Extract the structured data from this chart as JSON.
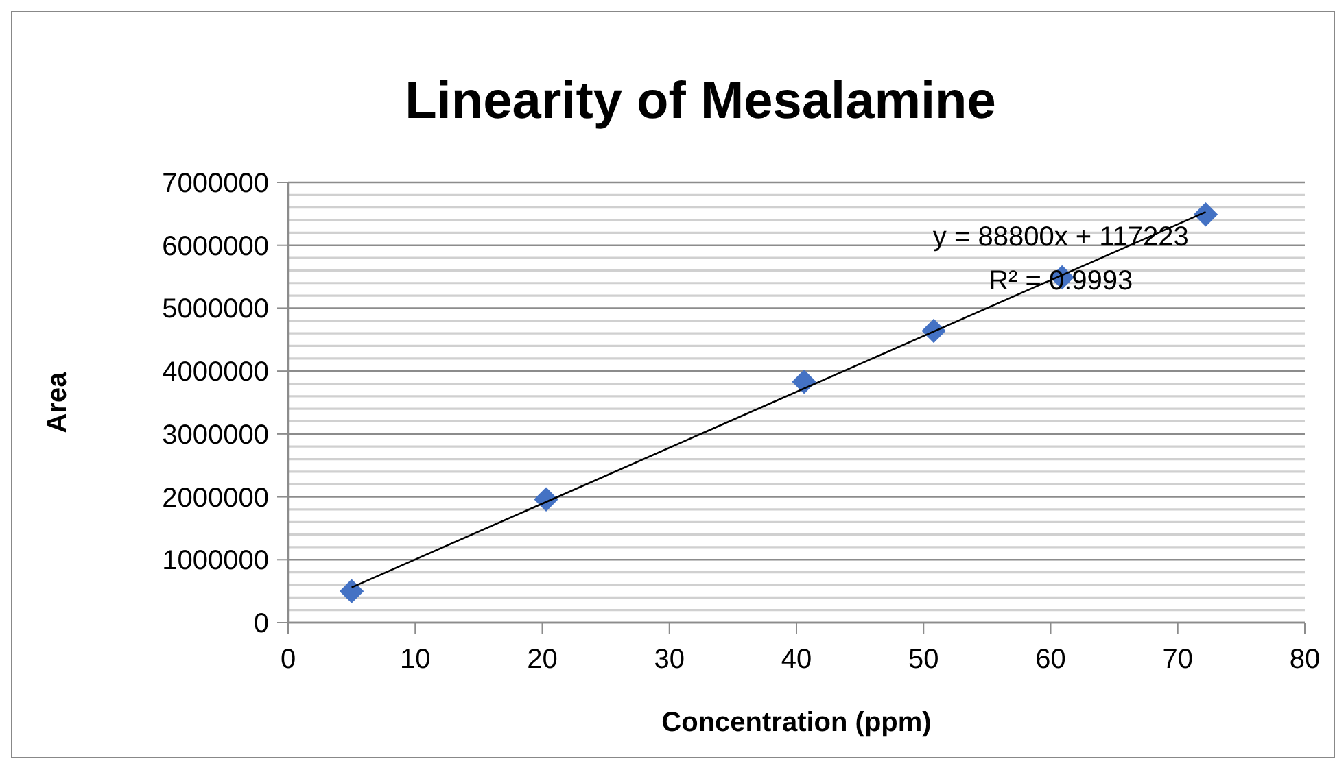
{
  "chart_data": {
    "type": "scatter",
    "title": "Linearity of Mesalamine",
    "xlabel": "Concentration (ppm)",
    "ylabel": "Area",
    "x": [
      5,
      20.3,
      40.6,
      50.8,
      60.9,
      72.2
    ],
    "series": [
      {
        "color": "#4472c4",
        "marker": "diamond",
        "values": [
          500000,
          1960000,
          3830000,
          4640000,
          5490000,
          6490000
        ]
      },
      {
        "type": "line",
        "color": "#000000",
        "marker": "none",
        "line_style": "solid",
        "x": [
          5,
          72.2
        ],
        "values": [
          560000,
          6530000
        ]
      }
    ],
    "xlim": [
      0,
      80
    ],
    "xticks": [
      0,
      10,
      20,
      30,
      40,
      50,
      60,
      70,
      80
    ],
    "ylim": [
      0,
      7000000
    ],
    "yticks": [
      0,
      {
        "value": 200000,
        "label": null
      },
      {
        "value": 400000,
        "label": null
      },
      {
        "value": 600000,
        "label": null
      },
      {
        "value": 800000,
        "label": null
      },
      1000000,
      {
        "value": 1200000,
        "label": null
      },
      {
        "value": 1400000,
        "label": null
      },
      {
        "value": 1600000,
        "label": null
      },
      {
        "value": 1800000,
        "label": null
      },
      2000000,
      {
        "value": 2200000,
        "label": null
      },
      {
        "value": 2400000,
        "label": null
      },
      {
        "value": 2600000,
        "label": null
      },
      {
        "value": 2800000,
        "label": null
      },
      3000000,
      {
        "value": 3200000,
        "label": null
      },
      {
        "value": 3400000,
        "label": null
      },
      {
        "value": 3600000,
        "label": null
      },
      {
        "value": 3800000,
        "label": null
      },
      4000000,
      {
        "value": 4200000,
        "label": null
      },
      {
        "value": 4400000,
        "label": null
      },
      {
        "value": 4600000,
        "label": null
      },
      {
        "value": 4800000,
        "label": null
      },
      5000000,
      {
        "value": 5200000,
        "label": null
      },
      {
        "value": 5400000,
        "label": null
      },
      {
        "value": 5600000,
        "label": null
      },
      {
        "value": 5800000,
        "label": null
      },
      6000000,
      {
        "value": 6200000,
        "label": null
      },
      {
        "value": 6400000,
        "label": null
      },
      {
        "value": 6600000,
        "label": null
      },
      {
        "value": 6800000,
        "label": null
      },
      7000000
    ],
    "grid": "y",
    "annotations": [
      "y = 88800x + 117223",
      "R² = 0.9993"
    ]
  }
}
